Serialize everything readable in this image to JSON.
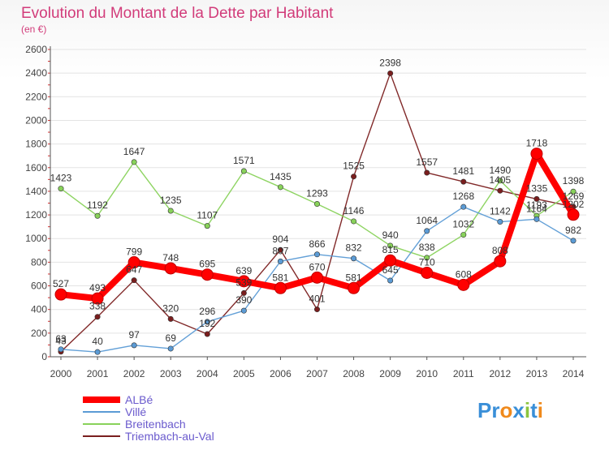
{
  "header": {
    "title": "Evolution du Montant de la Dette par Habitant",
    "unit": "(en €)"
  },
  "brand": {
    "logo_text": "Proxiti"
  },
  "chart_data": {
    "type": "line",
    "title": "Evolution du Montant de la Dette par Habitant",
    "subtitle": "(en €)",
    "xlabel": "",
    "ylabel": "",
    "x": [
      "2000",
      "2001",
      "2002",
      "2003",
      "2004",
      "2005",
      "2006",
      "2007",
      "2008",
      "2009",
      "2010",
      "2011",
      "2012",
      "2013",
      "2014"
    ],
    "ylim": [
      0,
      2600
    ],
    "yticks": [
      0,
      200,
      400,
      600,
      800,
      1000,
      1200,
      1400,
      1600,
      1800,
      2000,
      2200,
      2400,
      2600
    ],
    "grid": "horizontal",
    "legend_position": "bottom-left",
    "series": [
      {
        "name": "ALBé",
        "color": "#ff0000",
        "values": [
          527,
          493,
          799,
          748,
          695,
          639,
          581,
          670,
          581,
          815,
          710,
          608,
          808,
          1718,
          1202
        ]
      },
      {
        "name": "Villé",
        "color": "#5b9bd5",
        "values": [
          63,
          40,
          97,
          69,
          296,
          390,
          807,
          866,
          832,
          645,
          1064,
          1268,
          1142,
          1164,
          982
        ]
      },
      {
        "name": "Breitenbach",
        "color": "#88d25a",
        "values": [
          1423,
          1192,
          1647,
          1235,
          1107,
          1571,
          1435,
          1293,
          1146,
          940,
          838,
          1032,
          1490,
          1193,
          1398
        ]
      },
      {
        "name": "Triembach-au-Val",
        "color": "#7a1e1e",
        "values": [
          43,
          338,
          647,
          320,
          192,
          539,
          904,
          401,
          1525,
          2398,
          1557,
          1481,
          1405,
          1335,
          1269
        ]
      }
    ]
  }
}
